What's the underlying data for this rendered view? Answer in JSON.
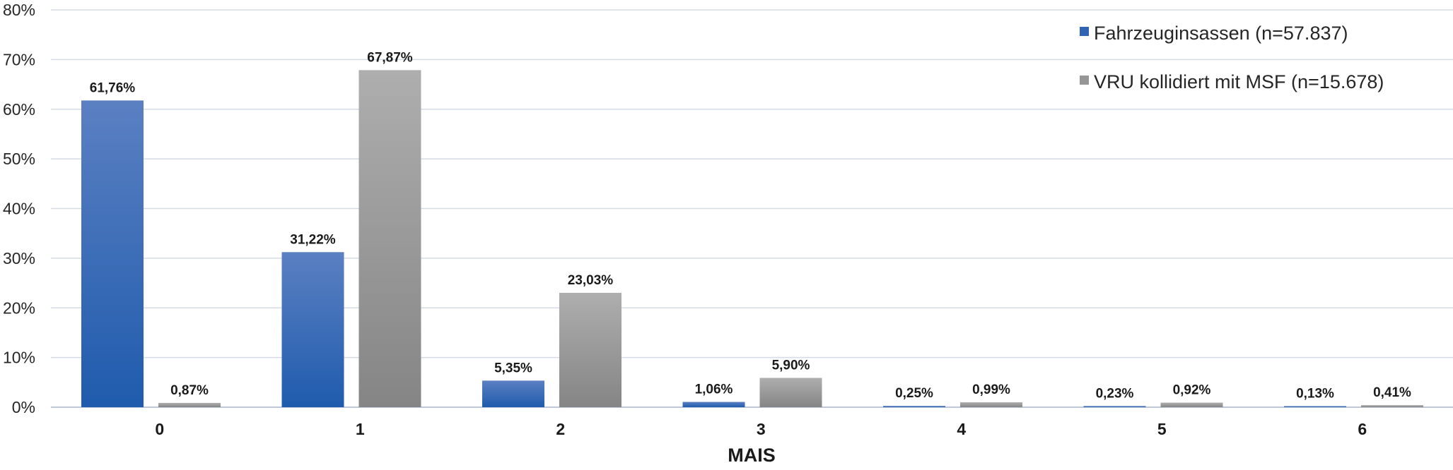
{
  "chart_data": {
    "type": "bar",
    "title": "",
    "xlabel": "MAIS",
    "ylabel": "",
    "categories": [
      "0",
      "1",
      "2",
      "3",
      "4",
      "5",
      "6"
    ],
    "ylim": [
      0,
      80
    ],
    "yticks": [
      0,
      10,
      20,
      30,
      40,
      50,
      60,
      70,
      80
    ],
    "ytick_labels": [
      "0%",
      "10%",
      "20%",
      "30%",
      "40%",
      "50%",
      "60%",
      "70%",
      "80%"
    ],
    "grid": true,
    "legend_position": "top-right",
    "series": [
      {
        "name": "Fahrzeuginsassen (n=57.837)",
        "color": "#2f64b4",
        "values": [
          61.76,
          31.22,
          5.35,
          1.06,
          0.25,
          0.23,
          0.13
        ],
        "labels": [
          "61,76%",
          "31,22%",
          "5,35%",
          "1,06%",
          "0,25%",
          "0,23%",
          "0,13%"
        ]
      },
      {
        "name": "VRU kollidiert mit MSF (n=15.678)",
        "color": "#969696",
        "values": [
          0.87,
          67.87,
          23.03,
          5.9,
          0.99,
          0.92,
          0.41
        ],
        "labels": [
          "0,87%",
          "67,87%",
          "23,03%",
          "5,90%",
          "0,99%",
          "0,92%",
          "0,41%"
        ]
      }
    ]
  }
}
